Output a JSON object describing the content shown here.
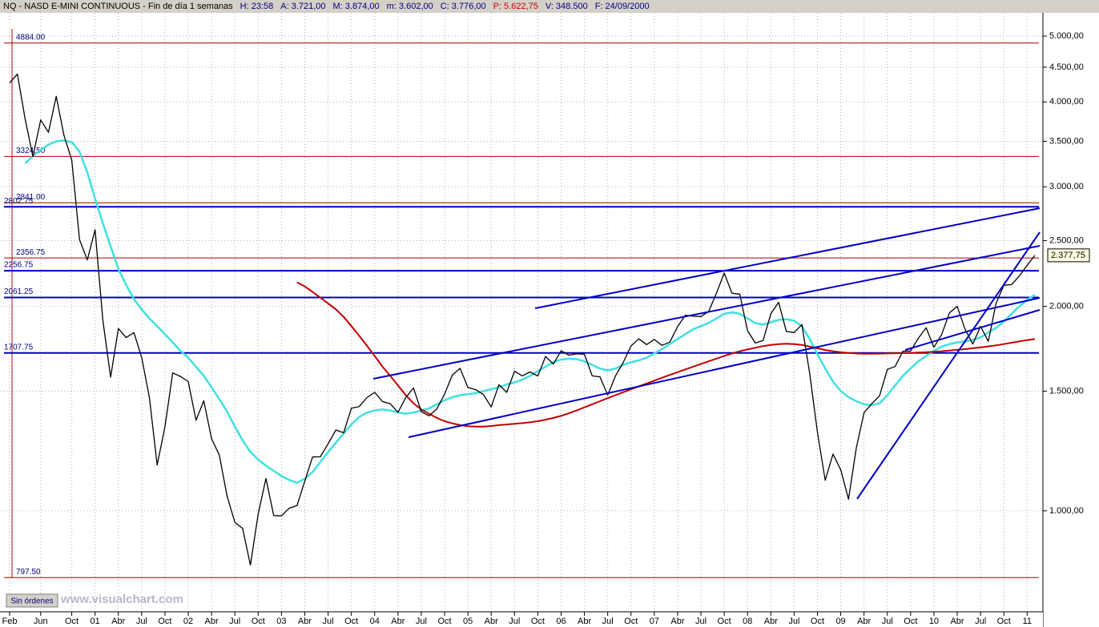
{
  "window": {
    "header": [
      "NQ - NASD E-MINI CONTINUOUS - Fin de día 1 semanas",
      "H: 23:58",
      "A: 3.721,00",
      "M: 3.874,00",
      "m: 3.602,00",
      "C: 3.776,00",
      "P: 5.622,75",
      "V: 348.500",
      "F: 24/09/2000"
    ],
    "button": "Sin órdenes",
    "watermark": "www.visualchart.com"
  },
  "chart_data": {
    "type": "line",
    "yscale": "log",
    "grid": true,
    "categories": [
      "Feb",
      null,
      null,
      null,
      "Jun",
      null,
      null,
      null,
      "Oct",
      null,
      null,
      "01",
      null,
      null,
      "Abr",
      null,
      null,
      "Jul",
      null,
      null,
      "Oct",
      null,
      null,
      "02",
      null,
      null,
      "Abr",
      null,
      null,
      "Jul",
      null,
      null,
      "Oct",
      null,
      null,
      "03",
      null,
      null,
      "Abr",
      null,
      null,
      "Jul",
      null,
      null,
      "Oct",
      null,
      null,
      "04",
      null,
      null,
      "Abr",
      null,
      null,
      "Jul",
      null,
      null,
      "Oct",
      null,
      null,
      "05",
      null,
      null,
      "Abr",
      null,
      null,
      "Jul",
      null,
      null,
      "Oct",
      null,
      null,
      "06",
      null,
      null,
      "Abr",
      null,
      null,
      "Jul",
      null,
      null,
      "Oct",
      null,
      null,
      "07",
      null,
      null,
      "Abr",
      null,
      null,
      "Jul",
      null,
      null,
      "Oct",
      null,
      null,
      "08",
      null,
      null,
      "Abr",
      null,
      null,
      "Jul",
      null,
      null,
      "Oct",
      null,
      null,
      "09",
      null,
      null,
      "Abr",
      null,
      null,
      "Jul",
      null,
      null,
      "Oct",
      null,
      null,
      "10",
      null,
      null,
      "Abr",
      null,
      null,
      "Jul",
      null,
      null,
      "Oct",
      null,
      null,
      "11",
      null
    ],
    "series": [
      {
        "color": "#000000",
        "values": [
          4266,
          4397,
          3773,
          3324,
          3763,
          3609,
          4077,
          3570,
          3282,
          2507,
          2341,
          2593,
          1908,
          1573,
          1855,
          1799,
          1830,
          1683,
          1469,
          1168,
          1329,
          1596,
          1577,
          1550,
          1359,
          1452,
          1277,
          1208,
          1051,
          962,
          942,
          832,
          989,
          1116,
          984,
          983,
          1009,
          1018,
          1106,
          1200,
          1201,
          1255,
          1315,
          1303,
          1416,
          1424,
          1468,
          1494,
          1448,
          1438,
          1396,
          1467,
          1517,
          1400,
          1380,
          1412,
          1485,
          1585,
          1621,
          1519,
          1508,
          1483,
          1422,
          1534,
          1494,
          1605,
          1580,
          1601,
          1579,
          1688,
          1645,
          1720,
          1695,
          1703,
          1700,
          1580,
          1575,
          1481,
          1580,
          1654,
          1749,
          1791,
          1757,
          1788,
          1752,
          1772,
          1867,
          1941,
          1934,
          1932,
          1966,
          2091,
          2239,
          2091,
          2085,
          1842,
          1766,
          1781,
          1950,
          2028,
          1837,
          1830,
          1880,
          1594,
          1305,
          1109,
          1212,
          1149,
          1040,
          1237,
          1395,
          1438,
          1477,
          1615,
          1631,
          1718,
          1719,
          1795,
          1860,
          1741,
          1818,
          1957,
          2000,
          1852,
          1760,
          1869,
          1776,
          2021,
          2148,
          2153,
          2217,
          2299,
          2377.75
        ]
      },
      {
        "color": "#40e0e0",
        "values": [
          null,
          null,
          3250,
          3330,
          3400,
          3460,
          3500,
          3510,
          3490,
          3380,
          3150,
          2880,
          2650,
          2450,
          2270,
          2150,
          2050,
          1980,
          1920,
          1870,
          1820,
          1770,
          1720,
          1680,
          1630,
          1580,
          1520,
          1460,
          1400,
          1330,
          1270,
          1220,
          1190,
          1165,
          1145,
          1125,
          1110,
          1100,
          1115,
          1140,
          1180,
          1220,
          1260,
          1300,
          1340,
          1375,
          1395,
          1405,
          1410,
          1405,
          1396,
          1390,
          1395,
          1405,
          1415,
          1435,
          1455,
          1470,
          1480,
          1485,
          1490,
          1500,
          1510,
          1520,
          1535,
          1545,
          1560,
          1580,
          1605,
          1630,
          1655,
          1670,
          1675,
          1672,
          1660,
          1640,
          1620,
          1610,
          1620,
          1640,
          1655,
          1665,
          1680,
          1705,
          1730,
          1760,
          1790,
          1820,
          1850,
          1870,
          1890,
          1920,
          1950,
          1960,
          1950,
          1920,
          1890,
          1880,
          1895,
          1910,
          1915,
          1905,
          1870,
          1790,
          1700,
          1620,
          1550,
          1500,
          1470,
          1450,
          1435,
          1430,
          1440,
          1480,
          1530,
          1580,
          1620,
          1660,
          1690,
          1720,
          1745,
          1760,
          1770,
          1775,
          1785,
          1800,
          1830,
          1860,
          1900,
          1950,
          2000,
          2045,
          2080
        ]
      },
      {
        "color": "#c00000",
        "values": [
          null,
          null,
          null,
          null,
          null,
          null,
          null,
          null,
          null,
          null,
          null,
          null,
          null,
          null,
          null,
          null,
          null,
          null,
          null,
          null,
          null,
          null,
          null,
          null,
          null,
          null,
          null,
          null,
          null,
          null,
          null,
          null,
          null,
          null,
          null,
          null,
          null,
          2170,
          2140,
          2100,
          2060,
          2020,
          1980,
          1930,
          1870,
          1810,
          1750,
          1690,
          1630,
          1580,
          1530,
          1480,
          1440,
          1410,
          1390,
          1370,
          1355,
          1345,
          1337,
          1332,
          1330,
          1330,
          1333,
          1337,
          1340,
          1343,
          1346,
          1350,
          1355,
          1362,
          1370,
          1380,
          1392,
          1405,
          1420,
          1435,
          1450,
          1465,
          1480,
          1495,
          1510,
          1525,
          1540,
          1555,
          1570,
          1585,
          1600,
          1615,
          1630,
          1645,
          1660,
          1675,
          1690,
          1705,
          1718,
          1728,
          1738,
          1748,
          1755,
          1760,
          1762,
          1760,
          1755,
          1745,
          1735,
          1725,
          1718,
          1712,
          1708,
          1705,
          1703,
          1703,
          1704,
          1705,
          1706,
          1707,
          1708,
          1710,
          1712,
          1715,
          1718,
          1722,
          1726,
          1730,
          1735,
          1740,
          1746,
          1752,
          1760,
          1768,
          1776,
          1784,
          1790
        ]
      }
    ],
    "ylim": [
      762,
      5470
    ],
    "yticks": [
      {
        "value": 1000,
        "label": "1.000,00"
      },
      {
        "value": 1500,
        "label": "1.500,00"
      },
      {
        "value": 2000,
        "label": "2.000,00"
      },
      {
        "value": 2500,
        "label": "2.500,00"
      },
      {
        "value": 3000,
        "label": "3.000,00"
      },
      {
        "value": 3500,
        "label": "3.500,00"
      },
      {
        "value": 4000,
        "label": "4.000,00"
      },
      {
        "value": 4500,
        "label": "4.500,00"
      },
      {
        "value": 5000,
        "label": "5.000,00"
      }
    ],
    "levels": [
      {
        "value": 4884,
        "label": "4884.00",
        "color": "#a00000"
      },
      {
        "value": 3324.5,
        "label": "3324.50",
        "color": "#a00000"
      },
      {
        "value": 2841,
        "label": "2841.00",
        "color": "#a00000"
      },
      {
        "value": 2802.75,
        "label": "2802.75",
        "color": "#0000c0"
      },
      {
        "value": 2356.75,
        "label": "2356.75",
        "color": "#a00000"
      },
      {
        "value": 2256.75,
        "label": "2256.75",
        "color": "#0000c0"
      },
      {
        "value": 2061.25,
        "label": "2061.25",
        "color": "#0000c0"
      },
      {
        "value": 1707.75,
        "label": "1707.75",
        "color": "#0000c0"
      },
      {
        "value": 797.5,
        "label": "797.50",
        "color": "#a00000"
      }
    ],
    "last": {
      "value": 2377.75,
      "label": "2.377,75"
    }
  }
}
